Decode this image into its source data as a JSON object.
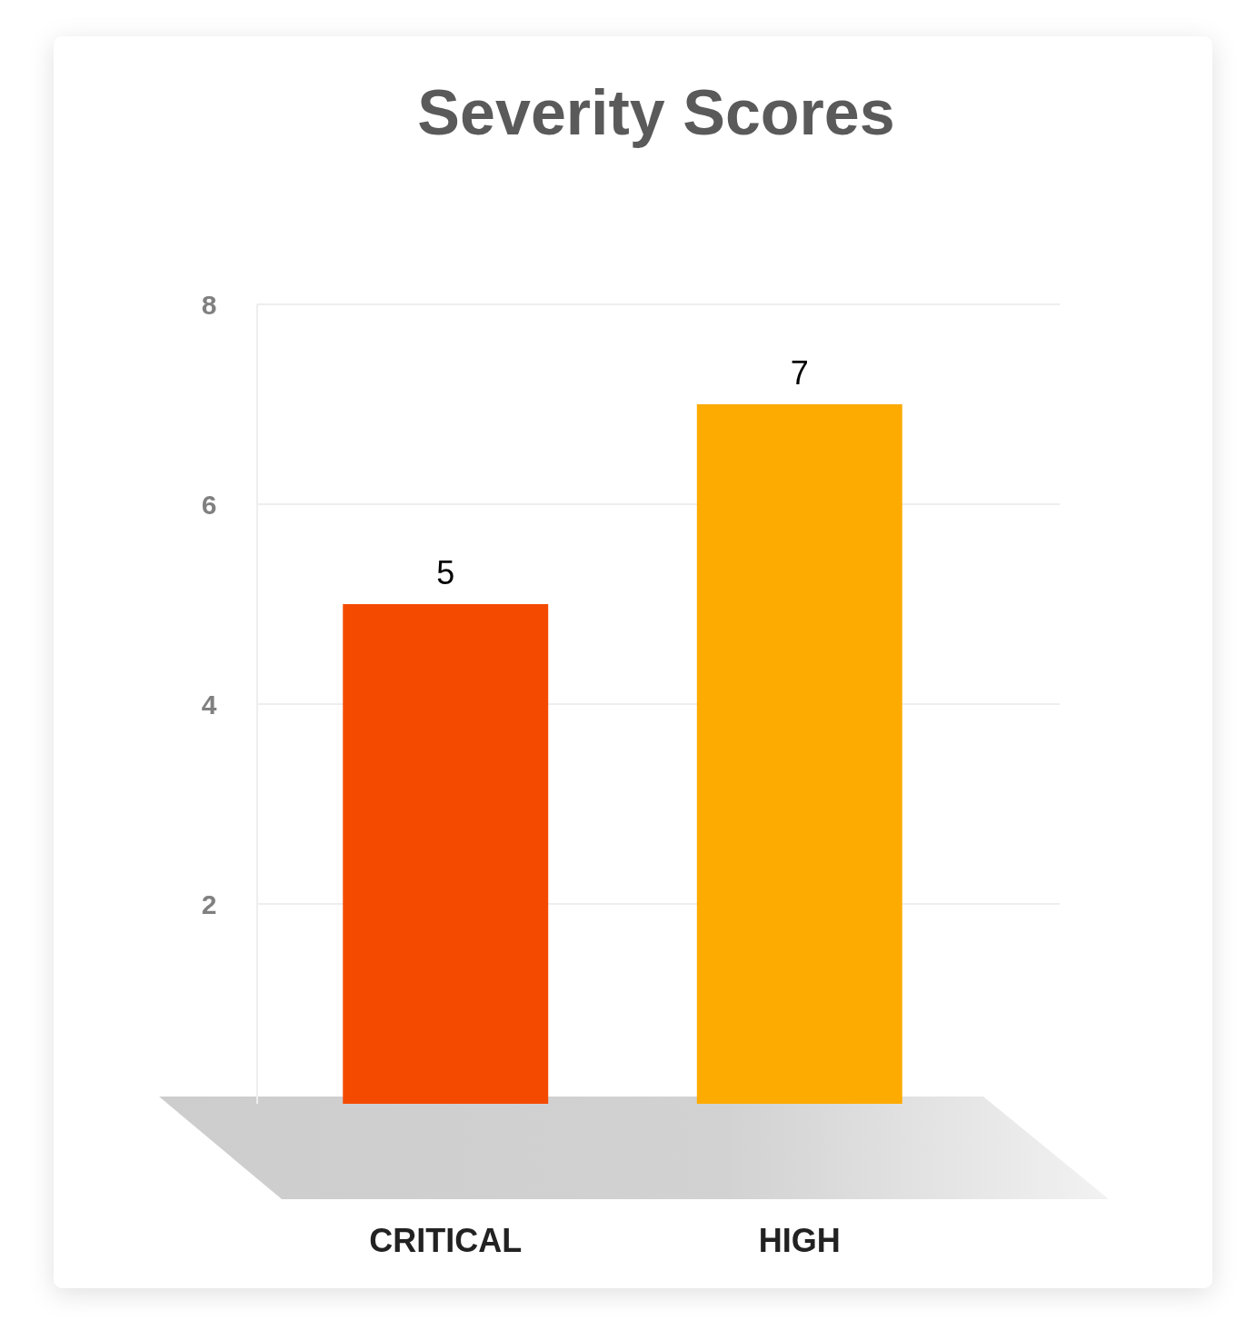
{
  "chart_data": {
    "type": "bar",
    "title": "Severity Scores",
    "categories": [
      "CRITICAL",
      "HIGH"
    ],
    "values": [
      5,
      7
    ],
    "colors": [
      "#f44a00",
      "#fdab00"
    ],
    "ylim": [
      0,
      8
    ],
    "yticks": [
      2,
      4,
      6,
      8
    ],
    "grid": "y",
    "data_labels": true
  }
}
